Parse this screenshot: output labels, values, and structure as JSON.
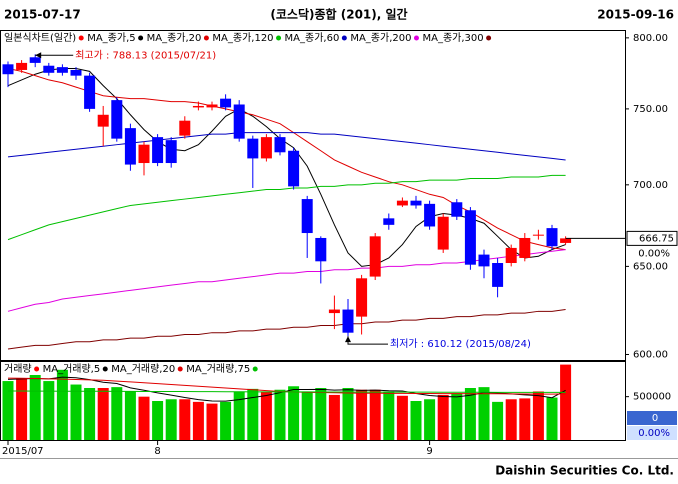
{
  "header": {
    "start_date": "2015-07-17",
    "title": "(코스닥)종합 (201), 일간",
    "end_date": "2015-09-16"
  },
  "chart_data": [
    {
      "type": "candlestick",
      "legend_title": "일본식차트(일간)",
      "categories": [
        "2015/07",
        null,
        null,
        null,
        null,
        null,
        null,
        null,
        null,
        null,
        null,
        "8",
        null,
        null,
        null,
        null,
        null,
        null,
        null,
        null,
        null,
        null,
        null,
        null,
        null,
        null,
        null,
        null,
        null,
        null,
        null,
        "9",
        null,
        null,
        null,
        null,
        null,
        null,
        null,
        null,
        null,
        null
      ],
      "open": [
        781,
        777,
        786,
        780,
        779,
        777,
        773,
        738,
        756,
        737,
        714,
        731,
        729,
        732,
        751,
        751,
        757,
        753,
        730,
        717,
        731,
        722,
        691,
        667,
        623,
        625,
        621,
        644,
        679,
        687,
        690,
        688,
        660,
        689,
        684,
        657,
        652,
        652,
        655,
        669,
        673,
        664
      ],
      "high": [
        783,
        784,
        788.13,
        782,
        781,
        779,
        775,
        752,
        758,
        740,
        728,
        733,
        731,
        745,
        755,
        755,
        760,
        756,
        732,
        733,
        733,
        724,
        693,
        668,
        633,
        631,
        645,
        670,
        682,
        692,
        693,
        690,
        682,
        691,
        686,
        660,
        655,
        663,
        670,
        672,
        675,
        668
      ],
      "low": [
        765,
        775,
        779,
        773,
        773,
        770,
        748,
        725,
        728,
        709,
        706,
        712,
        711,
        730,
        749,
        749,
        749,
        728,
        698,
        715,
        719,
        697,
        655,
        640,
        614,
        610.12,
        611,
        642,
        672,
        686,
        685,
        672,
        658,
        678,
        648,
        643,
        632,
        650,
        653,
        666,
        660,
        663
      ],
      "close": [
        774,
        782,
        782,
        775,
        775,
        773,
        750,
        746,
        730,
        713,
        726,
        714,
        714,
        742,
        752,
        753,
        751,
        730,
        717,
        731,
        721,
        699,
        670,
        653,
        625,
        612,
        643,
        668,
        675,
        690,
        687,
        674,
        680,
        680,
        651,
        650,
        638,
        661,
        667,
        669,
        662,
        666.75
      ],
      "up_color": "#ff0000",
      "down_color": "#0000ff",
      "log_scale": true,
      "ylim": [
        597,
        805
      ],
      "yticks": [
        {
          "value": 800,
          "label": "800.00"
        },
        {
          "value": 750,
          "label": "750.00"
        },
        {
          "value": 700,
          "label": "700.00"
        },
        {
          "value": 650,
          "label": "650.00"
        },
        {
          "value": 600,
          "label": "600.00"
        }
      ],
      "series": [
        {
          "name": "MA_종가,5",
          "color": "#000000",
          "values": [
            766,
            770,
            774,
            777,
            778,
            778,
            776,
            766,
            757,
            746,
            736,
            728,
            723,
            722,
            726,
            735,
            745,
            750,
            745,
            738,
            730,
            724,
            712,
            694,
            675,
            658,
            650,
            651,
            655,
            663,
            674,
            680,
            682,
            681,
            679,
            676,
            668,
            660,
            655,
            656,
            660,
            663
          ]
        },
        {
          "name": "MA_종가,20",
          "color": "#e00000",
          "values": [
            778,
            776,
            773,
            770,
            768,
            765,
            762,
            759,
            758,
            757,
            757,
            756,
            755,
            755,
            754,
            752,
            750,
            748,
            746,
            743,
            740,
            734,
            728,
            722,
            716,
            712,
            708,
            705,
            702,
            700,
            697,
            694,
            692,
            687,
            683,
            678,
            673,
            669,
            665,
            663,
            661,
            660
          ]
        },
        {
          "name": "MA_종가,120",
          "color": "#00c000",
          "values": [
            666,
            669,
            672,
            675,
            677,
            679,
            681,
            683,
            685,
            687,
            688,
            689,
            690,
            691,
            692,
            693,
            694,
            695,
            696,
            697,
            697,
            698,
            698,
            699,
            699,
            700,
            700,
            701,
            701,
            702,
            702,
            703,
            703,
            703,
            704,
            704,
            704,
            705,
            705,
            705,
            706,
            706
          ]
        },
        {
          "name": "MA_종가,60",
          "color": "#0000c0",
          "values": [
            718,
            719,
            720,
            721,
            722,
            723,
            724,
            725,
            726,
            727,
            728,
            729,
            730,
            731,
            732,
            733,
            733,
            734,
            734,
            734,
            734,
            734,
            734,
            733,
            733,
            732,
            731,
            730,
            729,
            728,
            727,
            726,
            725,
            724,
            723,
            722,
            721,
            720,
            719,
            718,
            717,
            716
          ]
        },
        {
          "name": "MA_종가,200",
          "color": "#e000e0",
          "values": [
            624,
            626,
            628,
            629,
            631,
            632,
            633,
            634,
            635,
            636,
            637,
            638,
            639,
            640,
            641,
            641,
            642,
            643,
            644,
            645,
            646,
            646,
            647,
            647,
            648,
            648,
            649,
            649,
            650,
            650,
            651,
            651,
            652,
            652,
            653,
            654,
            655,
            656,
            657,
            658,
            659,
            660
          ]
        },
        {
          "name": "MA_종가,300",
          "color": "#800000",
          "values": [
            603,
            604,
            605,
            605,
            606,
            607,
            607,
            608,
            608,
            609,
            609,
            610,
            610,
            611,
            611,
            612,
            612,
            613,
            613,
            614,
            614,
            615,
            615,
            616,
            616,
            617,
            617,
            618,
            618,
            619,
            619,
            620,
            620,
            621,
            621,
            622,
            622,
            623,
            623,
            624,
            624,
            625
          ]
        }
      ],
      "high_label": "최고가 : 788.13 (2015/07/21)",
      "low_label": "최저가 : 610.12 (2015/08/24)",
      "last_value": 666.75,
      "change_label": "0.00%"
    },
    {
      "type": "bar",
      "legend_title": "거래량",
      "values": [
        680000,
        710000,
        750000,
        680000,
        810000,
        640000,
        600000,
        600000,
        610000,
        560000,
        500000,
        450000,
        470000,
        470000,
        440000,
        420000,
        440000,
        560000,
        590000,
        560000,
        580000,
        620000,
        560000,
        600000,
        520000,
        600000,
        580000,
        580000,
        560000,
        510000,
        450000,
        470000,
        520000,
        540000,
        600000,
        610000,
        440000,
        470000,
        480000,
        560000,
        490000,
        870000
      ],
      "up_color": "#ff0000",
      "down_color": "#00d000",
      "ylim": [
        0,
        900000
      ],
      "yticks": [
        500000
      ],
      "series": [
        {
          "name": "MA_거래량,5",
          "color": "#000000",
          "values": [
            700000,
            705000,
            710000,
            705000,
            726000,
            718000,
            696000,
            666000,
            652000,
            602000,
            574000,
            544000,
            518000,
            490000,
            466000,
            450000,
            448000,
            466000,
            490000,
            514000,
            546000,
            582000,
            582000,
            584000,
            576000,
            580000,
            572000,
            576000,
            568000,
            566000,
            536000,
            514000,
            502000,
            498000,
            516000,
            548000,
            542000,
            532000,
            520000,
            512000,
            488000,
            574000
          ]
        },
        {
          "name": "MA_거래량,20",
          "color": "#e00000",
          "values": [
            714000,
            712000,
            710000,
            706000,
            702000,
            698000,
            694000,
            690000,
            680000,
            670000,
            660000,
            650000,
            640000,
            630000,
            620000,
            610000,
            600000,
            590000,
            580000,
            570000,
            560000,
            555000,
            550000,
            548000,
            545000,
            542000,
            540000,
            540000,
            538000,
            538000,
            537000,
            536000,
            535000,
            535000,
            534000,
            534000,
            533000,
            532000,
            531000,
            530000,
            530000,
            532000
          ]
        },
        {
          "name": "MA_거래량,75",
          "color": "#00c000",
          "values": [
            565000,
            565000,
            564000,
            564000,
            563000,
            563000,
            562000,
            562000,
            561000,
            561000,
            560000,
            560000,
            559000,
            559000,
            558000,
            558000,
            557000,
            557000,
            556000,
            556000,
            555000,
            555000,
            555000,
            554000,
            554000,
            554000,
            553000,
            553000,
            553000,
            552000,
            552000,
            552000,
            551000,
            551000,
            551000,
            551000,
            550000,
            550000,
            550000,
            550000,
            550000,
            550000
          ]
        }
      ],
      "last_value": 0,
      "change_label": "0.00%"
    }
  ],
  "footer": "Daishin Securities Co. Ltd."
}
